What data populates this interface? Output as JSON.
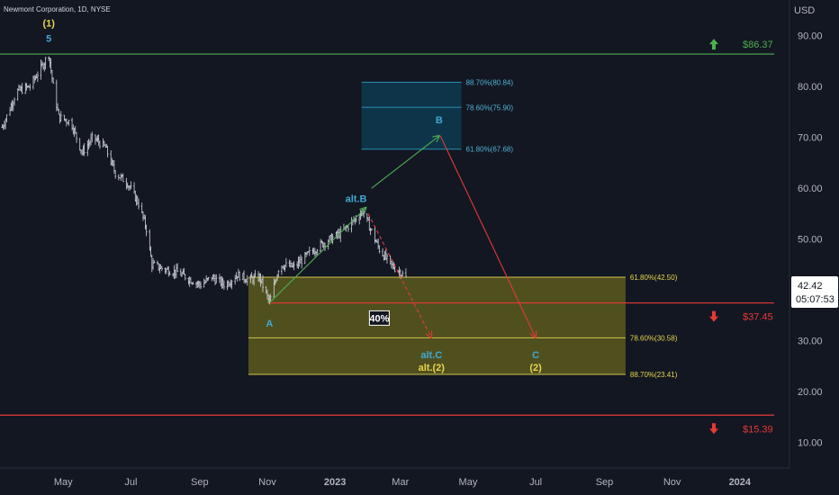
{
  "header": {
    "title": "Newmont Corporation, 1D, NYSE",
    "currency": "USD"
  },
  "price_box": {
    "last": "42.42",
    "countdown": "05:07:53"
  },
  "chart_data": {
    "type": "candlestick",
    "instrument": "Newmont Corporation",
    "interval": "1D",
    "exchange": "NYSE",
    "ylim": [
      5,
      97
    ],
    "yticks": [
      10,
      20,
      30,
      40,
      50,
      60,
      70,
      80,
      90
    ],
    "ytick_labels": [
      "10.00",
      "20.00",
      "30.00",
      "40.00",
      "50.00",
      "60.00",
      "70.00",
      "80.00",
      "90.00"
    ],
    "xticks": [
      {
        "label": "May",
        "date": "2022-05-01",
        "bold": false
      },
      {
        "label": "Jul",
        "date": "2022-07-01",
        "bold": false
      },
      {
        "label": "Sep",
        "date": "2022-09-01",
        "bold": false
      },
      {
        "label": "Nov",
        "date": "2022-11-01",
        "bold": false
      },
      {
        "label": "2023",
        "date": "2023-01-01",
        "bold": true
      },
      {
        "label": "Mar",
        "date": "2023-03-01",
        "bold": false
      },
      {
        "label": "May",
        "date": "2023-05-01",
        "bold": false
      },
      {
        "label": "Jul",
        "date": "2023-07-01",
        "bold": false
      },
      {
        "label": "Sep",
        "date": "2023-09-01",
        "bold": false
      },
      {
        "label": "Nov",
        "date": "2023-11-01",
        "bold": false
      },
      {
        "label": "2024",
        "date": "2024-01-01",
        "bold": true
      }
    ],
    "xlim": [
      "2022-03-05",
      "2024-02-01"
    ],
    "price_path": [
      [
        "2022-03-07",
        72
      ],
      [
        "2022-03-20",
        79
      ],
      [
        "2022-04-01",
        80
      ],
      [
        "2022-04-12",
        84
      ],
      [
        "2022-04-18",
        86.37
      ],
      [
        "2022-04-22",
        80
      ],
      [
        "2022-04-27",
        74
      ],
      [
        "2022-05-08",
        73
      ],
      [
        "2022-05-18",
        67
      ],
      [
        "2022-05-28",
        70
      ],
      [
        "2022-06-08",
        68
      ],
      [
        "2022-06-17",
        63
      ],
      [
        "2022-06-28",
        61
      ],
      [
        "2022-07-08",
        57
      ],
      [
        "2022-07-15",
        52
      ],
      [
        "2022-07-20",
        45
      ],
      [
        "2022-08-01",
        44
      ],
      [
        "2022-08-12",
        43.5
      ],
      [
        "2022-08-24",
        42
      ],
      [
        "2022-09-02",
        41
      ],
      [
        "2022-09-12",
        42.5
      ],
      [
        "2022-09-24",
        41
      ],
      [
        "2022-10-05",
        43
      ],
      [
        "2022-10-15",
        42
      ],
      [
        "2022-10-25",
        42.5
      ],
      [
        "2022-11-03",
        37.5
      ],
      [
        "2022-11-12",
        45
      ],
      [
        "2022-11-25",
        44.5
      ],
      [
        "2022-12-08",
        47
      ],
      [
        "2022-12-20",
        49
      ],
      [
        "2023-01-05",
        51
      ],
      [
        "2023-01-15",
        53
      ],
      [
        "2023-01-26",
        55.5
      ],
      [
        "2023-02-02",
        52
      ],
      [
        "2023-02-10",
        48
      ],
      [
        "2023-02-20",
        45
      ],
      [
        "2023-03-01",
        43.5
      ],
      [
        "2023-03-06",
        42.42
      ]
    ],
    "levels": [
      {
        "name": "upper-target",
        "price": 86.37,
        "color": "#4caf50",
        "label": "$86.37",
        "arrow": "up"
      },
      {
        "name": "wave-a-level",
        "price": 37.45,
        "color": "#e53935",
        "label": "$37.45",
        "arrow": "down"
      },
      {
        "name": "lower-target",
        "price": 15.39,
        "color": "#e53935",
        "label": "$15.39",
        "arrow": "down"
      }
    ],
    "zones": [
      {
        "name": "buy-zone",
        "from_date": "2022-10-15",
        "to_date": "2023-09-20",
        "top": 42.5,
        "bottom": 23.41,
        "fill": "#5c5a1f",
        "stroke": "#cfc34a",
        "fib": [
          {
            "price": 42.5,
            "label": "61.80%(42.50)"
          },
          {
            "price": 30.58,
            "label": "78.60%(30.58)"
          },
          {
            "price": 23.41,
            "label": "88.70%(23.41)"
          }
        ]
      },
      {
        "name": "wave-b-zone",
        "from_date": "2023-01-25",
        "to_date": "2023-04-25",
        "top": 80.84,
        "bottom": 67.68,
        "fill": "#0d3a4f",
        "stroke": "#2a8fb0",
        "fib": [
          {
            "price": 80.84,
            "label": "88.70%(80.84)"
          },
          {
            "price": 75.9,
            "label": "78.60%(75.90)"
          },
          {
            "price": 67.68,
            "label": "61.80%(67.68)"
          }
        ]
      }
    ],
    "waves": [
      {
        "label": "(1)",
        "date": "2022-04-18",
        "price": 92.5,
        "color": "#e8d44d"
      },
      {
        "label": "5",
        "date": "2022-04-18",
        "price": 89.5,
        "color": "#3fa9d6"
      },
      {
        "label": "A",
        "date": "2022-11-03",
        "price": 33.5,
        "color": "#3fa9d6"
      },
      {
        "label": "alt.B",
        "date": "2023-01-20",
        "price": 58,
        "color": "#3fa9d6"
      },
      {
        "label": "B",
        "date": "2023-04-05",
        "price": 73.5,
        "color": "#3fa9d6"
      },
      {
        "label": "alt.C",
        "date": "2023-03-29",
        "price": 27.3,
        "color": "#3fa9d6"
      },
      {
        "label": "alt.(2)",
        "date": "2023-03-29",
        "price": 24.8,
        "color": "#e8d44d"
      },
      {
        "label": "C",
        "date": "2023-07-01",
        "price": 27.3,
        "color": "#3fa9d6"
      },
      {
        "label": "(2)",
        "date": "2023-07-01",
        "price": 24.8,
        "color": "#e8d44d"
      }
    ],
    "projections": [
      {
        "name": "proj-a-to-altb",
        "from": [
          "2022-11-03",
          37.5
        ],
        "to": [
          "2023-01-29",
          56.2
        ],
        "color": "#4caf50",
        "dashed": false
      },
      {
        "name": "proj-altb-to-b",
        "from": [
          "2023-02-03",
          60
        ],
        "to": [
          "2023-04-05",
          70.3
        ],
        "color": "#4caf50",
        "dashed": false
      },
      {
        "name": "proj-b-to-c",
        "from": [
          "2023-04-06",
          70.3
        ],
        "to": [
          "2023-07-01",
          30.6
        ],
        "color": "#e53935",
        "dashed": false
      },
      {
        "name": "proj-altb-to-altc",
        "from": [
          "2023-01-31",
          55
        ],
        "to": [
          "2023-03-29",
          30.6
        ],
        "color": "#e53935",
        "dashed": true
      }
    ],
    "annotation": {
      "label": "40%",
      "date": "2023-02-10",
      "price": 34.3
    }
  }
}
